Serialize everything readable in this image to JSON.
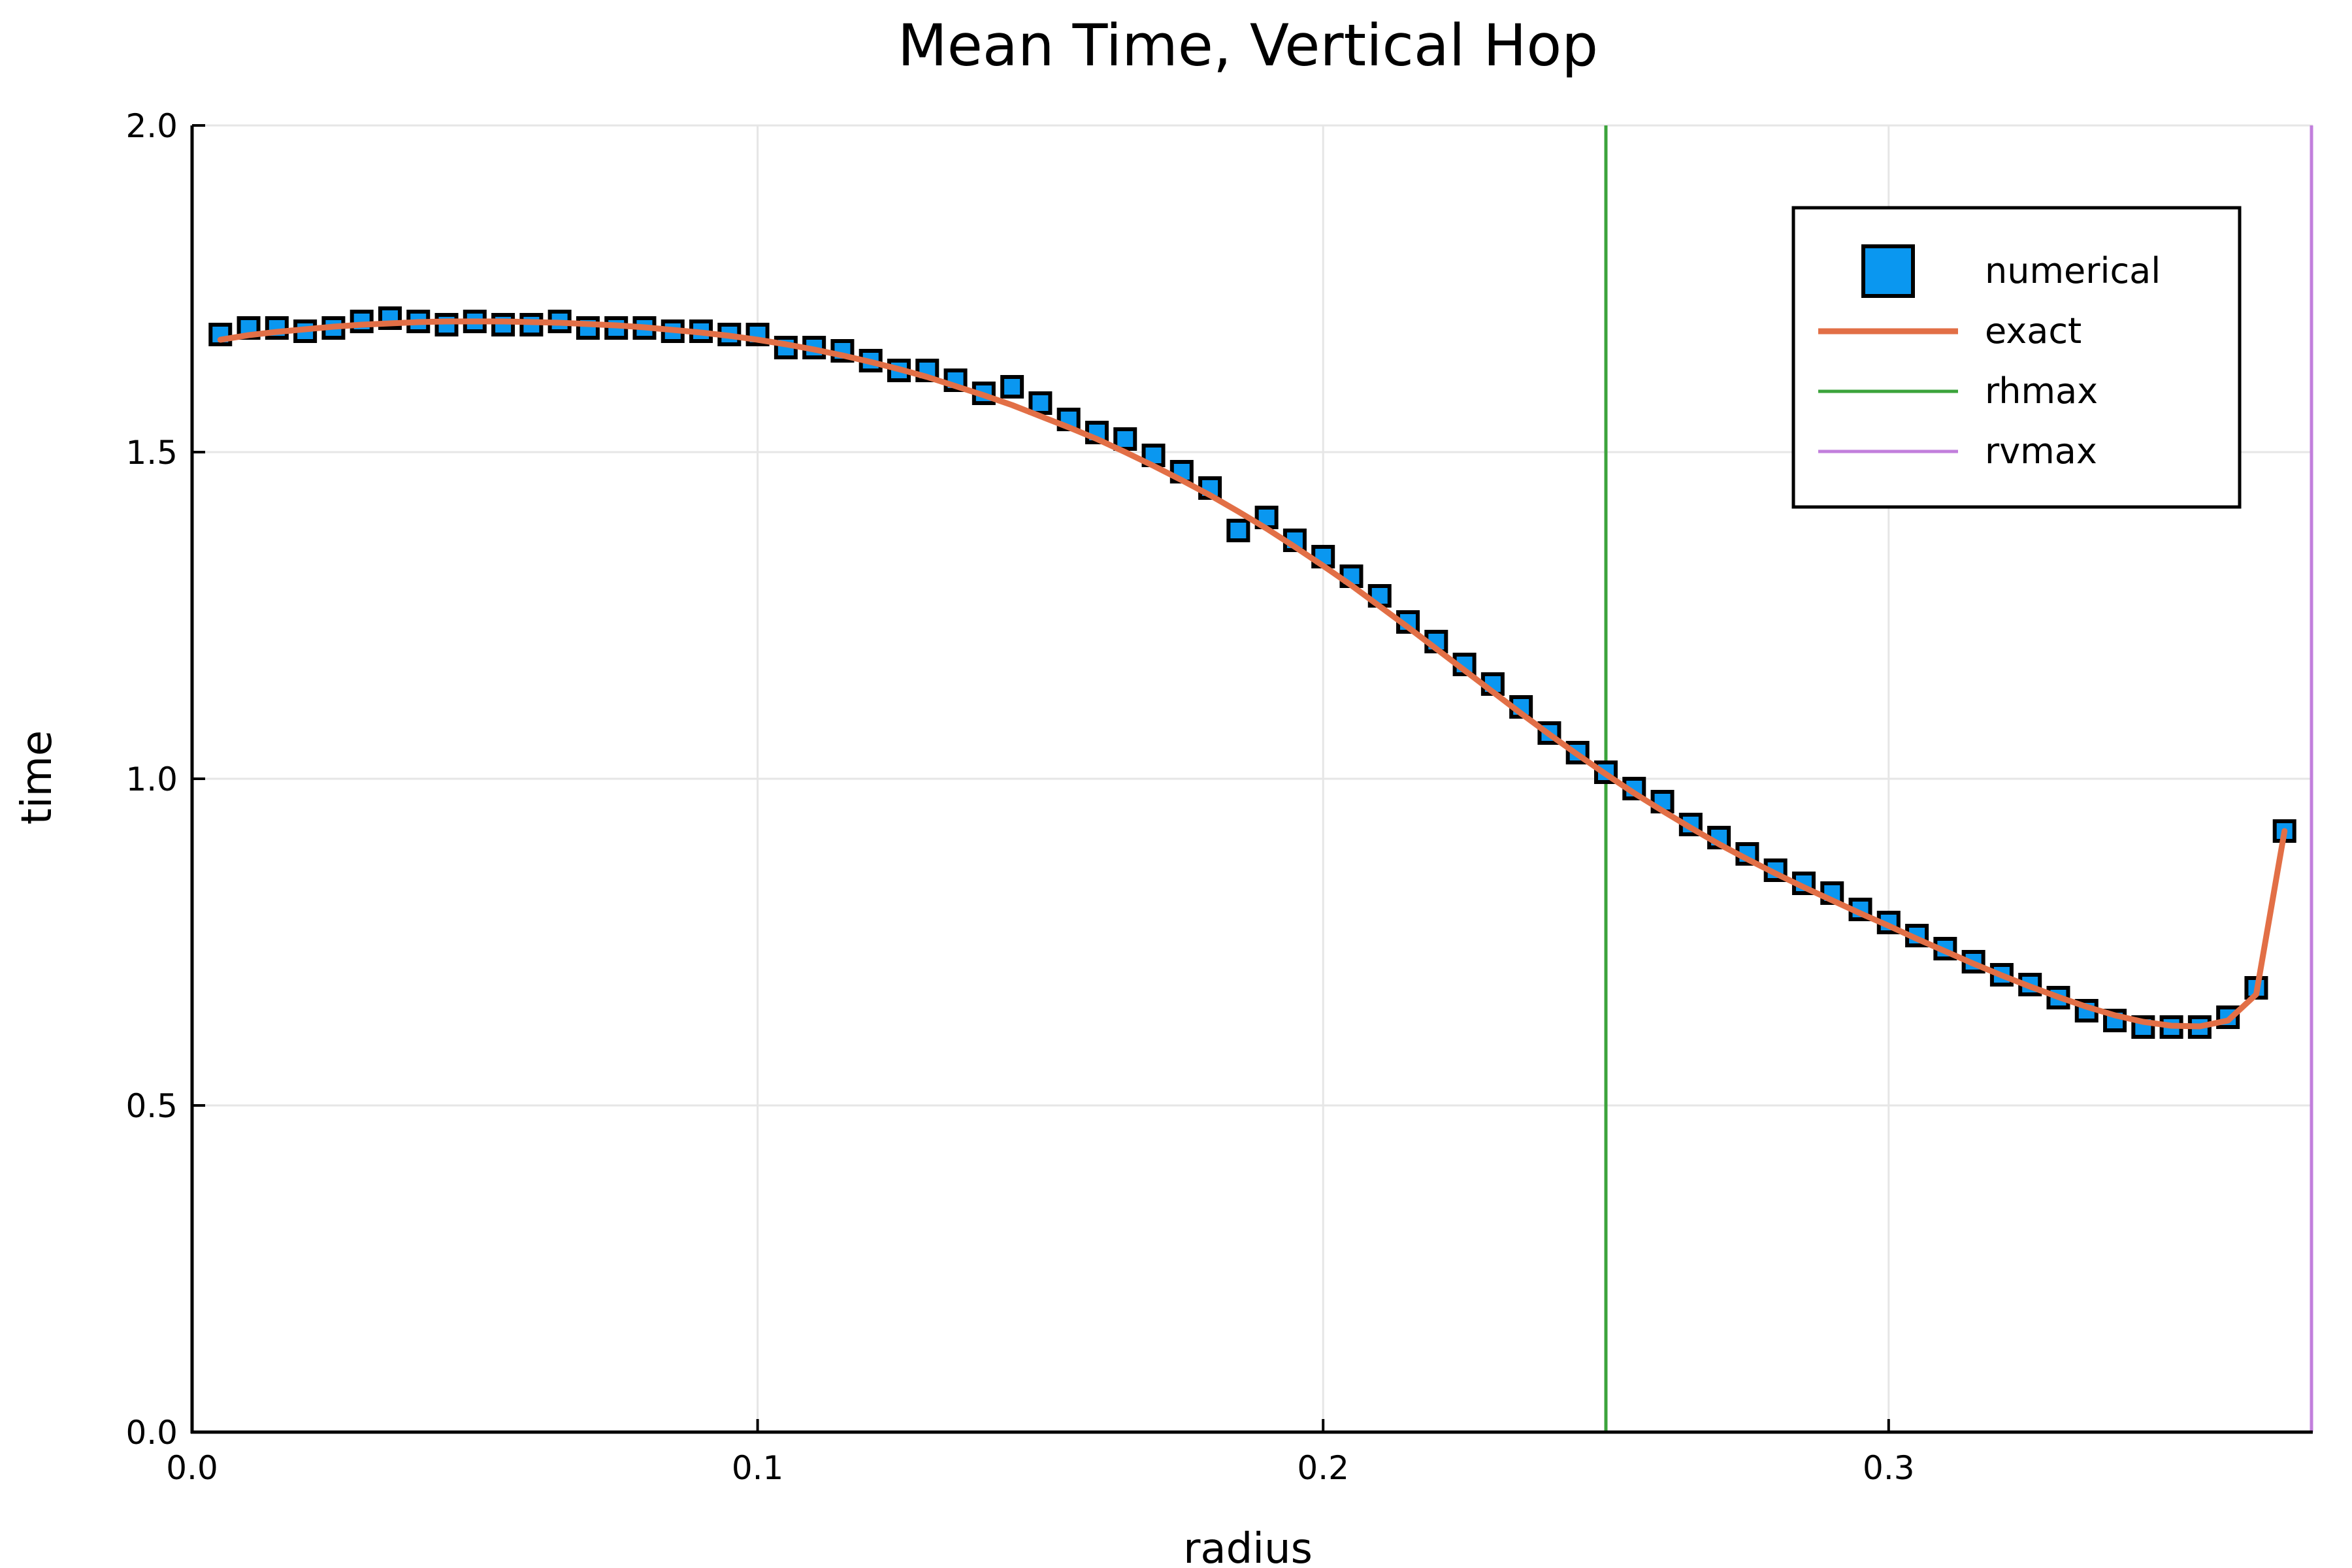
{
  "chart_data": {
    "type": "scatter",
    "title": "Mean Time, Vertical Hop",
    "xlabel": "radius",
    "ylabel": "time",
    "xlim": [
      0.0,
      0.375
    ],
    "ylim": [
      0.0,
      2.0
    ],
    "xticks": [
      0.0,
      0.1,
      0.2,
      0.3
    ],
    "xtick_labels": [
      "0.0",
      "0.1",
      "0.2",
      "0.3"
    ],
    "yticks": [
      0.0,
      0.5,
      1.0,
      1.5,
      2.0
    ],
    "ytick_labels": [
      "0.0",
      "0.5",
      "1.0",
      "1.5",
      "2.0"
    ],
    "grid": true,
    "legend_position": "top-right",
    "series": [
      {
        "name": "numerical",
        "kind": "scatter",
        "marker": "square",
        "color": "#0a97f0",
        "x": [
          0.005,
          0.01,
          0.015,
          0.02,
          0.025,
          0.03,
          0.035,
          0.04,
          0.045,
          0.05,
          0.055,
          0.06,
          0.065,
          0.07,
          0.075,
          0.08,
          0.085,
          0.09,
          0.095,
          0.1,
          0.105,
          0.11,
          0.115,
          0.12,
          0.125,
          0.13,
          0.135,
          0.14,
          0.145,
          0.15,
          0.155,
          0.16,
          0.165,
          0.17,
          0.175,
          0.18,
          0.185,
          0.19,
          0.195,
          0.2,
          0.205,
          0.21,
          0.215,
          0.22,
          0.225,
          0.23,
          0.235,
          0.24,
          0.245,
          0.25,
          0.255,
          0.26,
          0.265,
          0.27,
          0.275,
          0.28,
          0.285,
          0.29,
          0.295,
          0.3,
          0.305,
          0.31,
          0.315,
          0.32,
          0.325,
          0.33,
          0.335,
          0.34,
          0.345,
          0.35,
          0.355,
          0.36,
          0.365,
          0.37
        ],
        "y": [
          1.68,
          1.69,
          1.69,
          1.685,
          1.69,
          1.7,
          1.705,
          1.7,
          1.695,
          1.7,
          1.695,
          1.695,
          1.7,
          1.69,
          1.69,
          1.69,
          1.685,
          1.685,
          1.68,
          1.68,
          1.66,
          1.66,
          1.655,
          1.64,
          1.625,
          1.625,
          1.61,
          1.59,
          1.6,
          1.575,
          1.55,
          1.53,
          1.52,
          1.495,
          1.47,
          1.445,
          1.38,
          1.4,
          1.365,
          1.34,
          1.31,
          1.28,
          1.24,
          1.21,
          1.175,
          1.145,
          1.11,
          1.07,
          1.04,
          1.01,
          0.985,
          0.965,
          0.93,
          0.91,
          0.885,
          0.86,
          0.84,
          0.825,
          0.8,
          0.78,
          0.76,
          0.74,
          0.72,
          0.7,
          0.685,
          0.665,
          0.645,
          0.63,
          0.62,
          0.62,
          0.62,
          0.635,
          0.68,
          0.92
        ]
      },
      {
        "name": "exact",
        "kind": "line",
        "color": "#e26f46",
        "x": [
          0.005,
          0.01,
          0.015,
          0.02,
          0.025,
          0.03,
          0.035,
          0.04,
          0.045,
          0.05,
          0.055,
          0.06,
          0.065,
          0.07,
          0.075,
          0.08,
          0.085,
          0.09,
          0.095,
          0.1,
          0.105,
          0.11,
          0.115,
          0.12,
          0.125,
          0.13,
          0.135,
          0.14,
          0.145,
          0.15,
          0.155,
          0.16,
          0.165,
          0.17,
          0.175,
          0.18,
          0.185,
          0.19,
          0.195,
          0.2,
          0.205,
          0.21,
          0.215,
          0.22,
          0.225,
          0.23,
          0.235,
          0.24,
          0.245,
          0.25,
          0.255,
          0.26,
          0.265,
          0.27,
          0.275,
          0.28,
          0.285,
          0.29,
          0.295,
          0.3,
          0.305,
          0.31,
          0.315,
          0.32,
          0.325,
          0.33,
          0.335,
          0.34,
          0.345,
          0.35,
          0.355,
          0.36,
          0.365,
          0.37
        ],
        "y": [
          1.672,
          1.679,
          1.684,
          1.688,
          1.692,
          1.695,
          1.697,
          1.699,
          1.7,
          1.7,
          1.7,
          1.699,
          1.698,
          1.696,
          1.694,
          1.691,
          1.687,
          1.683,
          1.678,
          1.672,
          1.665,
          1.657,
          1.648,
          1.638,
          1.627,
          1.615,
          1.601,
          1.587,
          1.572,
          1.555,
          1.538,
          1.52,
          1.5,
          1.479,
          1.457,
          1.434,
          1.409,
          1.383,
          1.355,
          1.326,
          1.296,
          1.264,
          1.232,
          1.199,
          1.166,
          1.133,
          1.1,
          1.068,
          1.037,
          1.007,
          0.978,
          0.951,
          0.925,
          0.9,
          0.877,
          0.855,
          0.834,
          0.814,
          0.794,
          0.775,
          0.755,
          0.736,
          0.717,
          0.699,
          0.682,
          0.666,
          0.651,
          0.638,
          0.628,
          0.622,
          0.621,
          0.63,
          0.67,
          0.92
        ]
      },
      {
        "name": "rhmax",
        "kind": "vline",
        "color": "#3ba33b",
        "x": 0.25
      },
      {
        "name": "rvmax",
        "kind": "vline",
        "color": "#c27fdc",
        "x": 0.375
      }
    ]
  }
}
